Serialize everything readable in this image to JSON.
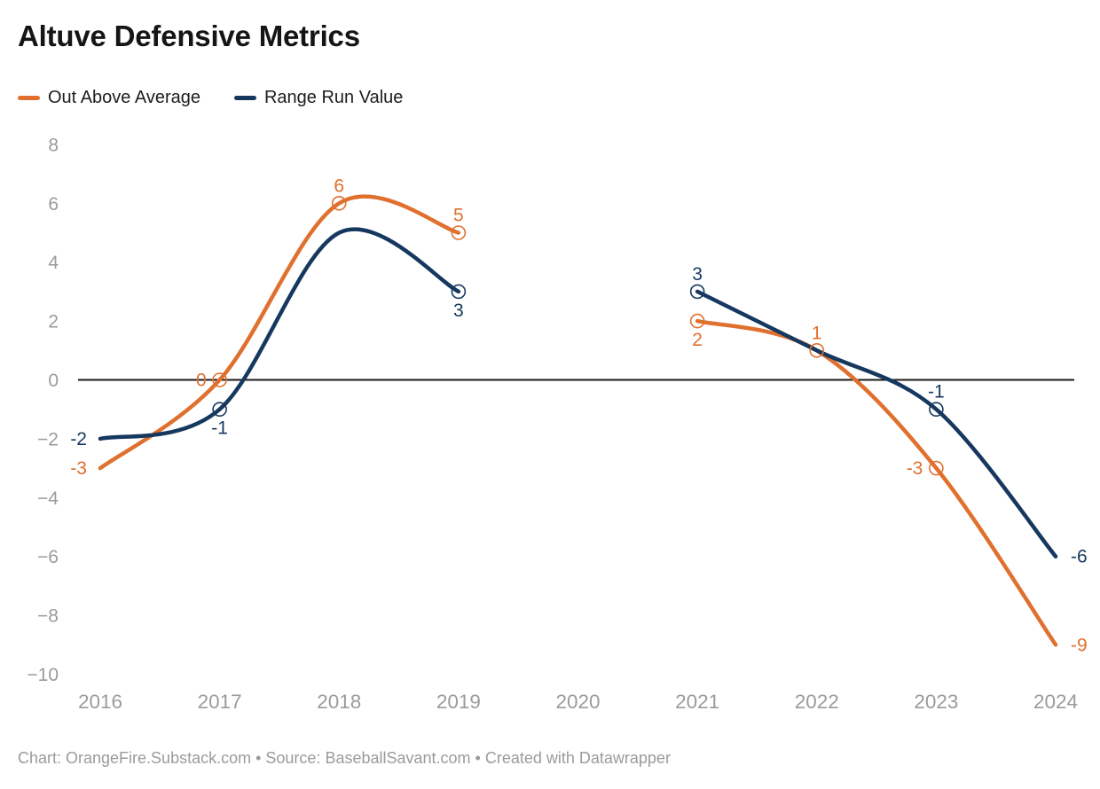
{
  "title": "Altuve Defensive Metrics",
  "legend": [
    {
      "label": "Out Above Average",
      "color": "#e0702e"
    },
    {
      "label": "Range Run Value",
      "color": "#16385f"
    }
  ],
  "footer": "Chart: OrangeFire.Substack.com • Source: BaseballSavant.com • Created with Datawrapper",
  "colors": {
    "background": "#ffffff",
    "axis_text": "#9b9b9b",
    "zero_line": "#1a1a1a",
    "oaa_orange": "#e0702e",
    "rrv_navy": "#16385f"
  },
  "chart_data": {
    "type": "line",
    "title": "Altuve Defensive Metrics",
    "xlabel": "",
    "ylabel": "",
    "x_tick_labels": [
      "2016",
      "2017",
      "2018",
      "2019",
      "2020",
      "2021",
      "2022",
      "2023",
      "2024"
    ],
    "x_years": [
      2016,
      2017,
      2018,
      2019,
      2020,
      2021,
      2022,
      2023,
      2024
    ],
    "y_ticks": [
      8,
      6,
      4,
      2,
      0,
      -2,
      -4,
      -6,
      -8,
      -10
    ],
    "y_tick_labels": [
      "8",
      "6",
      "4",
      "2",
      "0",
      "−2",
      "−4",
      "−6",
      "−8",
      "−10"
    ],
    "ylim": [
      -10,
      8
    ],
    "grid": false,
    "zero_line": true,
    "curve": "smooth",
    "gap_years": [
      2020
    ],
    "legend_position": "top-left",
    "series": [
      {
        "name": "Out Above Average",
        "color": "#e0702e",
        "segments": [
          [
            {
              "year": 2016,
              "value": -3,
              "label": "-3",
              "marker": false,
              "label_pos": "left"
            },
            {
              "year": 2017,
              "value": 0,
              "label": "0",
              "marker": true,
              "label_pos": "left"
            },
            {
              "year": 2018,
              "value": 6,
              "label": "6",
              "marker": true,
              "label_pos": "above"
            },
            {
              "year": 2019,
              "value": 5,
              "label": "5",
              "marker": true,
              "label_pos": "above"
            }
          ],
          [
            {
              "year": 2021,
              "value": 2,
              "label": "2",
              "marker": true,
              "label_pos": "below"
            },
            {
              "year": 2022,
              "value": 1,
              "label": "1",
              "marker": true,
              "label_pos": "above"
            },
            {
              "year": 2023,
              "value": -3,
              "label": "-3",
              "marker": true,
              "label_pos": "left"
            },
            {
              "year": 2024,
              "value": -9,
              "label": "-9",
              "marker": false,
              "label_pos": "right"
            }
          ]
        ]
      },
      {
        "name": "Range Run Value",
        "color": "#16385f",
        "segments": [
          [
            {
              "year": 2016,
              "value": -2,
              "label": "-2",
              "marker": false,
              "label_pos": "left"
            },
            {
              "year": 2017,
              "value": -1,
              "label": "-1",
              "marker": true,
              "label_pos": "below"
            },
            {
              "year": 2018,
              "value": 5,
              "label": null,
              "marker": false,
              "label_pos": "none"
            },
            {
              "year": 2019,
              "value": 3,
              "label": "3",
              "marker": true,
              "label_pos": "below"
            }
          ],
          [
            {
              "year": 2021,
              "value": 3,
              "label": "3",
              "marker": true,
              "label_pos": "above"
            },
            {
              "year": 2022,
              "value": 1,
              "label": null,
              "marker": false,
              "label_pos": "none"
            },
            {
              "year": 2023,
              "value": -1,
              "label": "-1",
              "marker": true,
              "label_pos": "above"
            },
            {
              "year": 2024,
              "value": -6,
              "label": "-6",
              "marker": false,
              "label_pos": "right"
            }
          ]
        ]
      }
    ]
  }
}
